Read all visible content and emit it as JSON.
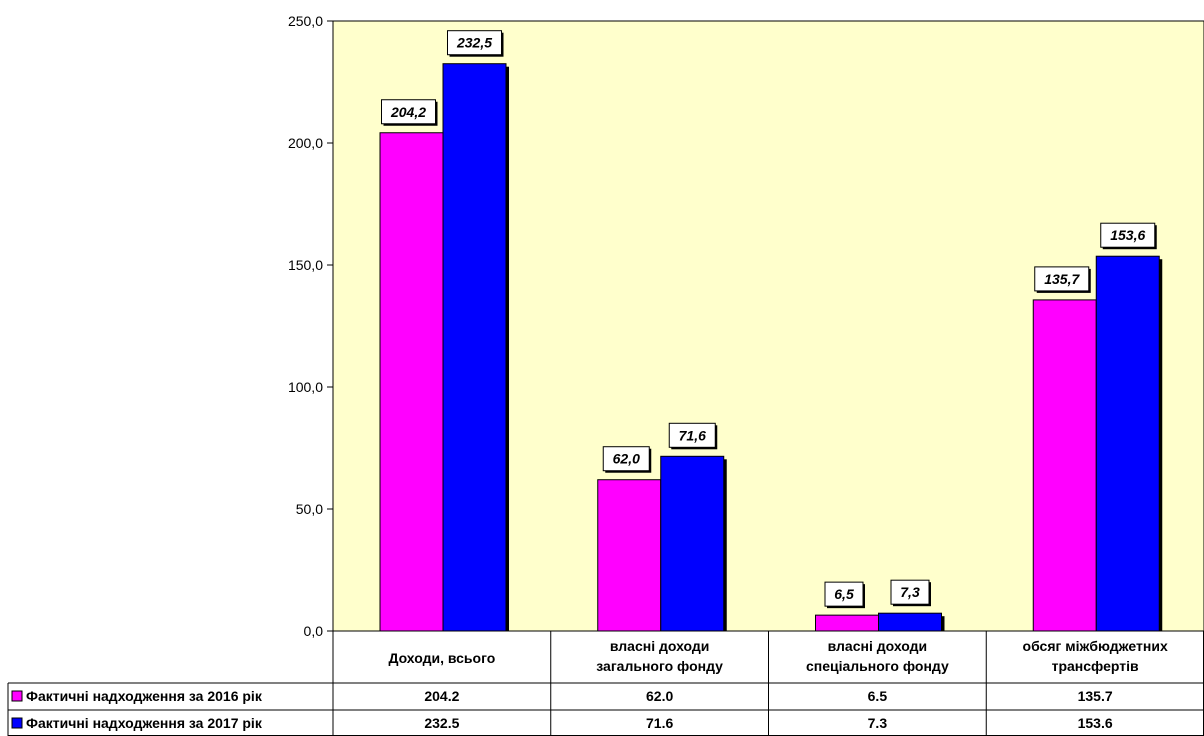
{
  "colors": {
    "plot_background": "#FFFFCC",
    "series_2016": "#FF00FF",
    "series_2017": "#0000FF",
    "axis": "#000000"
  },
  "chart_data": {
    "type": "bar",
    "categories": [
      [
        "Доходи, всього"
      ],
      [
        "власні доходи",
        "загального фонду"
      ],
      [
        "власні доходи",
        "спеціального фонду"
      ],
      [
        "обсяг міжбюджетних",
        "трансфертів"
      ]
    ],
    "series": [
      {
        "name": "Фактичні надходження за 2016  рік",
        "values": [
          204.2,
          62.0,
          6.5,
          135.7
        ],
        "color": "#FF00FF"
      },
      {
        "name": "Фактичні надходження за 2017  рік",
        "values": [
          232.5,
          71.6,
          7.3,
          153.6
        ],
        "color": "#0000FF"
      }
    ],
    "ylim": [
      0,
      250
    ],
    "yticks": [
      "0,0",
      "50,0",
      "100,0",
      "150,0",
      "200,0",
      "250,0"
    ],
    "data_labels": [
      [
        "204,2",
        "62,0",
        "6,5",
        "135,7"
      ],
      [
        "232,5",
        "71,6",
        "7,3",
        "153,6"
      ]
    ],
    "table": [
      [
        "204.2",
        "62.0",
        "6.5",
        "135.7"
      ],
      [
        "232.5",
        "71.6",
        "7.3",
        "153.6"
      ]
    ],
    "grid": false,
    "legend": "data table rows"
  }
}
